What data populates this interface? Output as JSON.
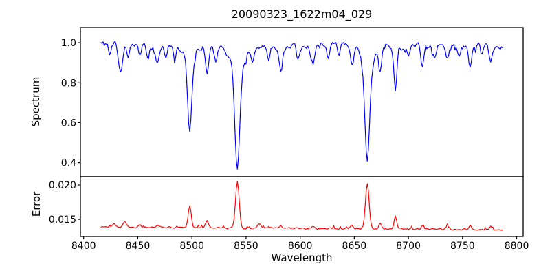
{
  "figure": {
    "background": "#ffffff",
    "frame_color": "#000000",
    "text_color": "#000000"
  },
  "chart_data": {
    "type": "line",
    "title": "20090323_1622m04_029",
    "xlabel": "Wavelength",
    "xlim": [
      8397,
      8806
    ],
    "xticks": {
      "values": [
        8400,
        8450,
        8500,
        8550,
        8600,
        8650,
        8700,
        8750,
        8800
      ],
      "labels": [
        "8400",
        "8450",
        "8500",
        "8550",
        "8600",
        "8650",
        "8700",
        "8750",
        "8800"
      ]
    },
    "x_start": 8416,
    "x_end": 8787,
    "x_step": 1,
    "grid": false,
    "legend": "none",
    "panels": [
      {
        "name": "spectrum",
        "ylabel": "Spectrum",
        "line_color": "#0000ff",
        "ylim": [
          0.33,
          1.076
        ],
        "yticks": {
          "values": [
            0.4,
            0.6,
            0.8,
            1.0
          ],
          "labels": [
            "0.4",
            "0.6",
            "0.8",
            "1.0"
          ]
        },
        "model": {
          "kind": "absorption_spectrum",
          "continuum": 0.985,
          "waves": [
            {
              "amplitude": 0.007,
              "period": 17,
              "phase": 0.0
            },
            {
              "amplitude": 0.005,
              "period": 41,
              "phase": 1.3
            },
            {
              "amplitude": 0.005,
              "period": 4.5,
              "phase": 2.1
            }
          ],
          "noise_amplitude": 0.02,
          "dip_probability": 0.1,
          "dip_max": 0.03,
          "seed": 20090323,
          "absorption_lines": [
            {
              "center": 8424,
              "depth": 0.06,
              "sigma": 1.2
            },
            {
              "center": 8434,
              "depth": 0.15,
              "sigma": 1.8
            },
            {
              "center": 8441,
              "depth": 0.08,
              "sigma": 1.2
            },
            {
              "center": 8452,
              "depth": 0.05,
              "sigma": 1.2
            },
            {
              "center": 8459,
              "depth": 0.07,
              "sigma": 1.2
            },
            {
              "center": 8468,
              "depth": 0.09,
              "sigma": 1.5
            },
            {
              "center": 8476,
              "depth": 0.05,
              "sigma": 1.2
            },
            {
              "center": 8484,
              "depth": 0.06,
              "sigma": 1.2
            },
            {
              "center": 8498,
              "depth": 0.36,
              "sigma": 1.8
            },
            {
              "center": 8498,
              "depth": 0.06,
              "sigma": 5.0
            },
            {
              "center": 8514,
              "depth": 0.14,
              "sigma": 1.6
            },
            {
              "center": 8522,
              "depth": 0.07,
              "sigma": 1.2
            },
            {
              "center": 8542,
              "depth": 0.5,
              "sigma": 2.2
            },
            {
              "center": 8542,
              "depth": 0.12,
              "sigma": 6.5
            },
            {
              "center": 8556,
              "depth": 0.06,
              "sigma": 1.2
            },
            {
              "center": 8571,
              "depth": 0.06,
              "sigma": 1.2
            },
            {
              "center": 8582,
              "depth": 0.09,
              "sigma": 1.4
            },
            {
              "center": 8598,
              "depth": 0.07,
              "sigma": 1.3
            },
            {
              "center": 8612,
              "depth": 0.08,
              "sigma": 1.3
            },
            {
              "center": 8626,
              "depth": 0.08,
              "sigma": 1.3
            },
            {
              "center": 8636,
              "depth": 0.05,
              "sigma": 1.2
            },
            {
              "center": 8648,
              "depth": 0.11,
              "sigma": 1.5
            },
            {
              "center": 8662,
              "depth": 0.48,
              "sigma": 2.1
            },
            {
              "center": 8662,
              "depth": 0.11,
              "sigma": 6.0
            },
            {
              "center": 8674,
              "depth": 0.1,
              "sigma": 1.3
            },
            {
              "center": 8688,
              "depth": 0.23,
              "sigma": 1.4
            },
            {
              "center": 8700,
              "depth": 0.06,
              "sigma": 1.2
            },
            {
              "center": 8713,
              "depth": 0.1,
              "sigma": 1.4
            },
            {
              "center": 8724,
              "depth": 0.06,
              "sigma": 1.2
            },
            {
              "center": 8736,
              "depth": 0.08,
              "sigma": 1.3
            },
            {
              "center": 8747,
              "depth": 0.06,
              "sigma": 1.2
            },
            {
              "center": 8757,
              "depth": 0.1,
              "sigma": 1.4
            },
            {
              "center": 8768,
              "depth": 0.06,
              "sigma": 1.2
            },
            {
              "center": 8776,
              "depth": 0.08,
              "sigma": 1.3
            }
          ]
        }
      },
      {
        "name": "error",
        "ylabel": "Error",
        "line_color": "#ff0000",
        "ylim": [
          0.0125,
          0.0212
        ],
        "yticks": {
          "values": [
            0.015,
            0.02
          ],
          "labels": [
            "0.015",
            "0.020"
          ]
        },
        "model": {
          "kind": "error_trace",
          "baseline": 0.01385,
          "slope_per_angstrom": -9e-07,
          "noise_amplitude": 0.00018,
          "bump_probability": 0.08,
          "bump_max": 0.0004,
          "seed": 1622029,
          "peaks": [
            {
              "center": 8428,
              "height": 0.0005,
              "sigma": 1.3
            },
            {
              "center": 8438,
              "height": 0.0009,
              "sigma": 1.5
            },
            {
              "center": 8452,
              "height": 0.0004,
              "sigma": 1.2
            },
            {
              "center": 8468,
              "height": 0.0004,
              "sigma": 1.3
            },
            {
              "center": 8498,
              "height": 0.0033,
              "sigma": 1.4
            },
            {
              "center": 8514,
              "height": 0.001,
              "sigma": 1.4
            },
            {
              "center": 8542,
              "height": 0.0067,
              "sigma": 1.7
            },
            {
              "center": 8562,
              "height": 0.0007,
              "sigma": 1.5
            },
            {
              "center": 8582,
              "height": 0.0004,
              "sigma": 1.3
            },
            {
              "center": 8612,
              "height": 0.0003,
              "sigma": 1.2
            },
            {
              "center": 8648,
              "height": 0.0005,
              "sigma": 1.3
            },
            {
              "center": 8662,
              "height": 0.0066,
              "sigma": 1.7
            },
            {
              "center": 8674,
              "height": 0.0008,
              "sigma": 1.2
            },
            {
              "center": 8688,
              "height": 0.0018,
              "sigma": 1.2
            },
            {
              "center": 8713,
              "height": 0.0005,
              "sigma": 1.2
            },
            {
              "center": 8736,
              "height": 0.0004,
              "sigma": 1.2
            },
            {
              "center": 8757,
              "height": 0.0005,
              "sigma": 1.2
            },
            {
              "center": 8776,
              "height": 0.0004,
              "sigma": 1.2
            }
          ]
        }
      }
    ]
  }
}
